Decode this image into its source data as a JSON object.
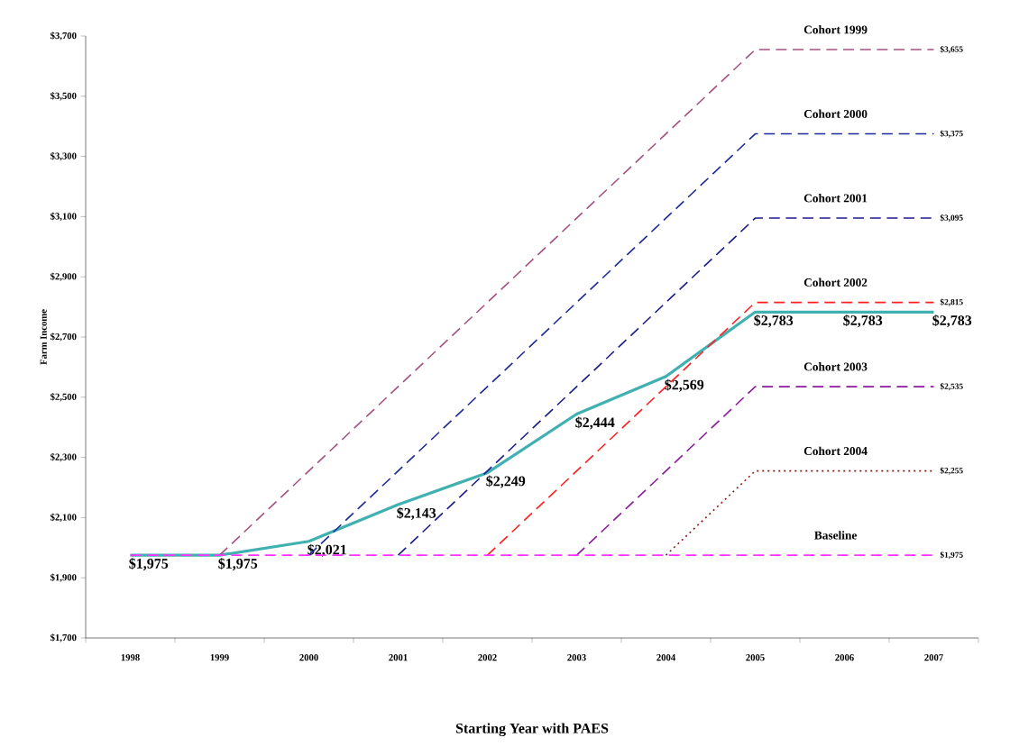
{
  "chart_data": {
    "type": "line",
    "xlabel": "Starting Year with PAES",
    "ylabel": "Farm Income",
    "categories": [
      "1998",
      "1999",
      "2000",
      "2001",
      "2002",
      "2003",
      "2004",
      "2005",
      "2006",
      "2007"
    ],
    "ylim": [
      1700,
      3700
    ],
    "yticks": [
      {
        "value": 1700,
        "label": "$1,700"
      },
      {
        "value": 1900,
        "label": "$1,900"
      },
      {
        "value": 2100,
        "label": "$2,100"
      },
      {
        "value": 2300,
        "label": "$2,300"
      },
      {
        "value": 2500,
        "label": "$2,500"
      },
      {
        "value": 2700,
        "label": "$2,700"
      },
      {
        "value": 2900,
        "label": "$2,900"
      },
      {
        "value": 3100,
        "label": "$3,100"
      },
      {
        "value": 3300,
        "label": "$3,300"
      },
      {
        "value": 3500,
        "label": "$3,500"
      },
      {
        "value": 3700,
        "label": "$3,700"
      }
    ],
    "series": [
      {
        "color": "#40b0b0",
        "line_style": "solid",
        "values": [
          1975,
          1975,
          2021,
          2143,
          2249,
          2444,
          2569,
          2783,
          2783,
          2783
        ],
        "value_labels": [
          "$1,975",
          "$1,975",
          "$2,021",
          "$2,143",
          "$2,249",
          "$2,444",
          "$2,569",
          "$2,783",
          "$2,783",
          "$2,783"
        ]
      },
      {
        "name": "Cohort 2004",
        "color": "#8b1a1a",
        "line_style": "dotted",
        "values": [
          null,
          null,
          null,
          null,
          null,
          null,
          1975,
          2255,
          2255,
          2255
        ],
        "value_labels": [
          null,
          null,
          null,
          null,
          null,
          null,
          null,
          null,
          null,
          "$2,255"
        ]
      },
      {
        "name": "Cohort 2003",
        "color": "#8b1a9c",
        "line_style": "dashed",
        "values": [
          null,
          null,
          null,
          null,
          null,
          1975,
          2255,
          2535,
          2535,
          2535
        ],
        "value_labels": [
          null,
          null,
          null,
          null,
          null,
          null,
          null,
          null,
          null,
          "$2,535"
        ]
      },
      {
        "name": "Cohort 2002",
        "color": "#ff2020",
        "line_style": "dashed",
        "values": [
          null,
          null,
          null,
          null,
          1975,
          2255,
          2535,
          2815,
          2815,
          2815
        ],
        "value_labels": [
          null,
          null,
          null,
          null,
          null,
          null,
          null,
          null,
          null,
          "$2,815"
        ]
      },
      {
        "name": "Cohort 2001",
        "color": "#1c1c8c",
        "line_style": "dashed",
        "values": [
          null,
          null,
          null,
          1975,
          2255,
          2535,
          2815,
          3095,
          3095,
          3095
        ],
        "value_labels": [
          null,
          null,
          null,
          null,
          null,
          null,
          null,
          null,
          null,
          "$3,095"
        ]
      },
      {
        "name": "Cohort 2000",
        "color": "#1c2b99",
        "line_style": "dashed",
        "values": [
          null,
          null,
          1975,
          2255,
          2535,
          2815,
          3095,
          3375,
          3375,
          3375
        ],
        "value_labels": [
          null,
          null,
          null,
          null,
          null,
          null,
          null,
          null,
          null,
          "$3,375"
        ]
      },
      {
        "name": "Cohort 1999",
        "color": "#a5527f",
        "line_style": "dashed",
        "values": [
          null,
          1975,
          2255,
          2535,
          2815,
          3095,
          3375,
          3655,
          3655,
          3655
        ],
        "value_labels": [
          null,
          null,
          null,
          null,
          null,
          null,
          null,
          null,
          null,
          "$3,655"
        ]
      },
      {
        "name": "Baseline",
        "color": "#ff33ff",
        "line_style": "dashed",
        "values": [
          1975,
          1975,
          1975,
          1975,
          1975,
          1975,
          1975,
          1975,
          1975,
          1975
        ],
        "value_labels": [
          null,
          null,
          null,
          null,
          null,
          null,
          null,
          null,
          null,
          "$1,975"
        ]
      }
    ]
  }
}
